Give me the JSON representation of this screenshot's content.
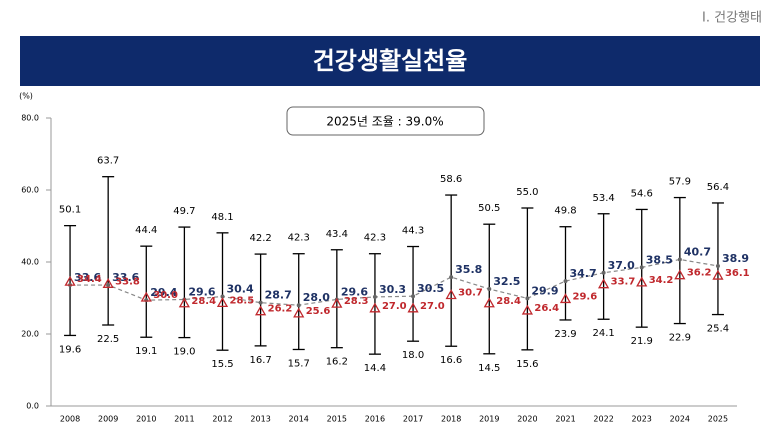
{
  "section": "Ⅰ. 건강행태",
  "chart_data": {
    "type": "range-line",
    "title": "건강생활실천율",
    "note": "2025년 조율 : 39.0%",
    "y_unit": "(%)",
    "categories": [
      "2008",
      "2009",
      "2010",
      "2011",
      "2012",
      "2013",
      "2014",
      "2015",
      "2016",
      "2017",
      "2018",
      "2019",
      "2020",
      "2021",
      "2022",
      "2023",
      "2024",
      "2025"
    ],
    "ylim": [
      0,
      80
    ],
    "yticks": [
      {
        "value": 0,
        "label": "0.0"
      },
      {
        "value": 20,
        "label": "20.0"
      },
      {
        "value": 40,
        "label": "40.0"
      },
      {
        "value": 60,
        "label": "60.0"
      },
      {
        "value": 80,
        "label": "80.0"
      }
    ],
    "grid": false,
    "range": {
      "color": "#000000",
      "high": [
        50.1,
        63.7,
        44.4,
        49.7,
        48.1,
        42.2,
        42.3,
        43.4,
        42.3,
        44.3,
        58.6,
        50.5,
        55.0,
        49.8,
        53.4,
        54.6,
        57.9,
        56.4
      ],
      "high_labels": [
        "50.1",
        "63.7",
        "44.4",
        "49.7",
        "48.1",
        "42.2",
        "42.3",
        "43.4",
        "42.3",
        "44.3",
        "58.6",
        "50.5",
        "55.0",
        "49.8",
        "53.4",
        "54.6",
        "57.9",
        "56.4"
      ],
      "low": [
        19.6,
        22.5,
        19.1,
        19.0,
        15.5,
        16.7,
        15.7,
        16.2,
        14.4,
        18.0,
        16.6,
        14.5,
        15.6,
        23.9,
        24.1,
        21.9,
        22.9,
        25.4
      ],
      "low_labels": [
        "19.6",
        "22.5",
        "19.1",
        "19.0",
        "15.5",
        "16.7",
        "15.7",
        "16.2",
        "14.4",
        "18.0",
        "16.6",
        "14.5",
        "15.6",
        "23.9",
        "24.1",
        "21.9",
        "22.9",
        "25.4"
      ]
    },
    "series": [
      {
        "color": "#1f3264",
        "values": [
          33.6,
          33.6,
          29.4,
          29.6,
          30.4,
          28.7,
          28.0,
          29.6,
          30.3,
          30.5,
          35.8,
          32.5,
          29.9,
          34.7,
          37.0,
          38.5,
          40.7,
          38.9
        ],
        "value_labels": [
          "33.6",
          "33.6",
          "29.4",
          "29.6",
          "30.4",
          "28.7",
          "28.0",
          "29.6",
          "30.3",
          "30.5",
          "35.8",
          "32.5",
          "29.9",
          "34.7",
          "37.0",
          "38.5",
          "40.7",
          "38.9"
        ]
      },
      {
        "color": "#c0282d",
        "values": [
          34.4,
          33.8,
          30.0,
          28.4,
          28.5,
          26.2,
          25.6,
          28.3,
          27.0,
          27.0,
          30.7,
          28.4,
          26.4,
          29.6,
          33.7,
          34.2,
          36.2,
          36.1
        ],
        "value_labels": [
          "34.4",
          "33.8",
          "30.0",
          "28.4",
          "28.5",
          "26.2",
          "25.6",
          "28.3",
          "27.0",
          "27.0",
          "30.7",
          "28.4",
          "26.4",
          "29.6",
          "33.7",
          "34.2",
          "36.2",
          "36.1"
        ]
      }
    ]
  }
}
